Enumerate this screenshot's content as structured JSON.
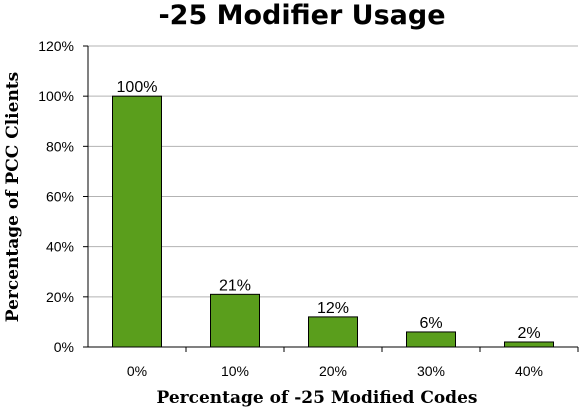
{
  "chart_data": {
    "type": "bar",
    "title": "-25 Modifier Usage",
    "xlabel": "Percentage of -25 Modified Codes",
    "ylabel": "Percentage of PCC Clients",
    "categories": [
      "0%",
      "10%",
      "20%",
      "30%",
      "40%"
    ],
    "values": [
      100,
      21,
      12,
      6,
      2
    ],
    "data_labels": [
      "100%",
      "21%",
      "12%",
      "6%",
      "2%"
    ],
    "ylim": [
      0,
      120
    ],
    "yticks": [
      0,
      20,
      40,
      60,
      80,
      100,
      120
    ],
    "ytick_labels": [
      "0%",
      "20%",
      "40%",
      "60%",
      "80%",
      "100%",
      "120%"
    ],
    "grid": true,
    "legend": "none",
    "colors": {
      "bar": "#5a9e1c",
      "bar_edge": "#000000",
      "grid": "#b3b3b3",
      "axis": "#000000"
    }
  }
}
